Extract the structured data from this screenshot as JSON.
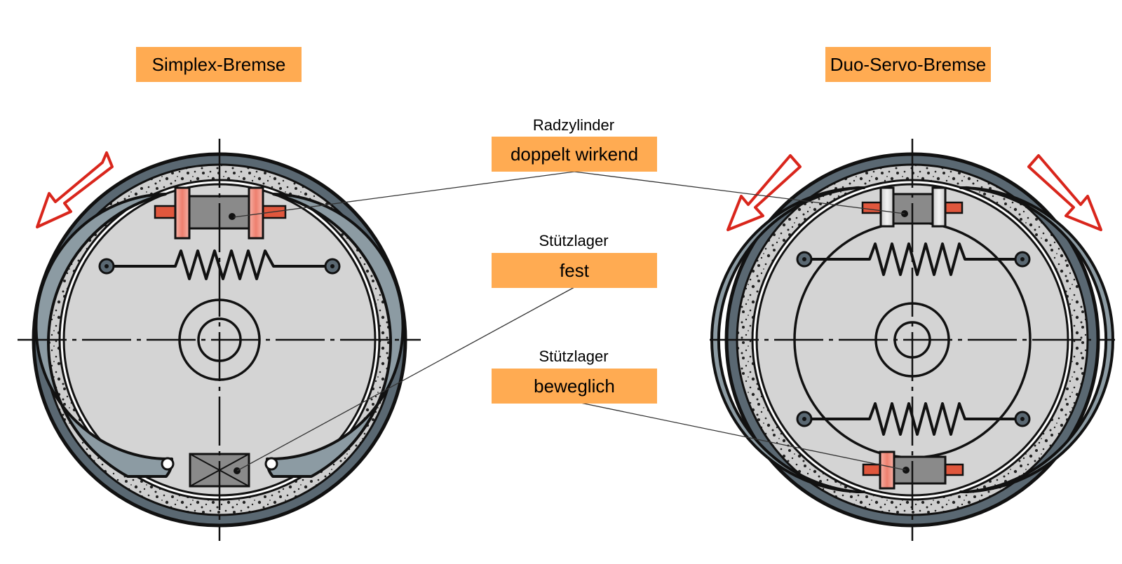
{
  "titles": {
    "left": "Simplex-Bremse",
    "right": "Duo-Servo-Bremse"
  },
  "labels": [
    {
      "caption": "Radzylinder",
      "value": "doppelt wirkend"
    },
    {
      "caption": "Stützlager",
      "value": "fest"
    },
    {
      "caption": "Stützlager",
      "value": "beweglich"
    }
  ],
  "colors": {
    "label_fill": "#ffab52",
    "drum": "#5a6872",
    "lining": "#cfcfcf",
    "shoe": "#8c9ba3",
    "backplate": "#d4d4d4",
    "piston": "#f08a7a",
    "pin": "#e0573d",
    "cylinder": "#8a8a8a",
    "arrow": "#d9261c"
  }
}
